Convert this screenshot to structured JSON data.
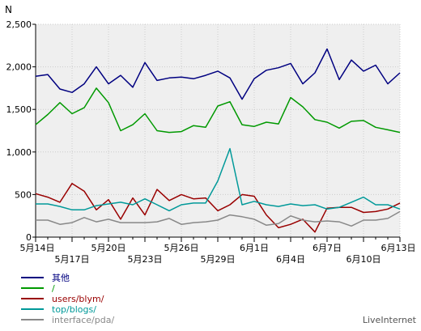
{
  "chart_data": {
    "type": "line",
    "ylabel": "N",
    "ylim": [
      0,
      2500
    ],
    "yticks": [
      0,
      500,
      1000,
      1500,
      2000,
      2500
    ],
    "ytick_labels": [
      "0",
      "500",
      "1,000",
      "1,500",
      "2,000",
      "2,500"
    ],
    "xtick_labels_top": [
      "5月14日",
      "5月20日",
      "5月26日",
      "6月1日",
      "6月7日",
      "6月13日"
    ],
    "xtick_labels_bottom": [
      "5月17日",
      "5月23日",
      "5月29日",
      "6月4日",
      "6月10日"
    ],
    "grid": true,
    "legend_position": "bottom-left",
    "watermark": "LiveInternet",
    "series": [
      {
        "name": "其他",
        "color": "#000080",
        "values": [
          1890,
          1910,
          1740,
          1700,
          1800,
          2000,
          1800,
          1900,
          1760,
          2050,
          1840,
          1870,
          1880,
          1860,
          1900,
          1950,
          1870,
          1620,
          1860,
          1960,
          1990,
          2040,
          1800,
          1930,
          2210,
          1850,
          2080,
          1950,
          2020,
          1800,
          1930
        ]
      },
      {
        "name": "/",
        "color": "#009900",
        "values": [
          1320,
          1440,
          1580,
          1450,
          1520,
          1750,
          1580,
          1250,
          1320,
          1450,
          1250,
          1230,
          1240,
          1310,
          1290,
          1540,
          1590,
          1320,
          1300,
          1350,
          1330,
          1640,
          1530,
          1380,
          1350,
          1280,
          1360,
          1370,
          1290,
          1260,
          1230
        ]
      },
      {
        "name": "users/blym/",
        "color": "#990000",
        "values": [
          510,
          470,
          410,
          630,
          540,
          320,
          440,
          210,
          460,
          260,
          560,
          430,
          500,
          450,
          460,
          310,
          380,
          500,
          480,
          260,
          110,
          150,
          210,
          60,
          340,
          350,
          350,
          290,
          300,
          330,
          400
        ]
      },
      {
        "name": "top/blogs/",
        "color": "#009999",
        "values": [
          390,
          390,
          360,
          320,
          320,
          370,
          390,
          410,
          380,
          450,
          380,
          310,
          380,
          400,
          400,
          660,
          1040,
          380,
          420,
          380,
          360,
          390,
          370,
          380,
          330,
          350,
          410,
          470,
          380,
          380,
          330
        ]
      },
      {
        "name": "interface/pda/",
        "color": "#888888",
        "values": [
          200,
          200,
          150,
          170,
          230,
          180,
          210,
          170,
          170,
          170,
          180,
          220,
          150,
          170,
          180,
          200,
          260,
          240,
          210,
          140,
          160,
          250,
          200,
          180,
          190,
          180,
          130,
          200,
          200,
          220,
          300
        ]
      }
    ]
  }
}
